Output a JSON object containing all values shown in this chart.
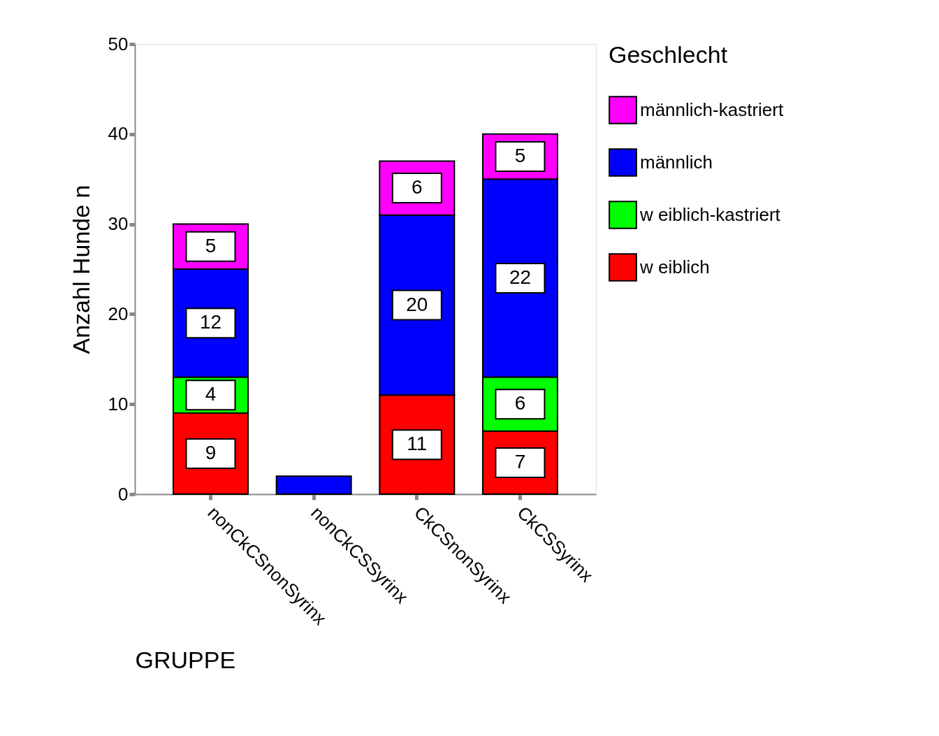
{
  "chart_data": {
    "type": "bar",
    "stacked": true,
    "xlabel": "GRUPPE",
    "ylabel": "Anzahl Hunde n",
    "legend_title": "Geschlecht",
    "legend": "right",
    "categories": [
      "nonCkCSnonSyrinx",
      "nonCkCSSyrinx",
      "CkCSnonSyrinx",
      "CkCSSyrinx"
    ],
    "ylim": [
      0,
      50
    ],
    "yticks": [
      0,
      10,
      20,
      30,
      40,
      50
    ],
    "grid": false,
    "series": [
      {
        "name": "w eiblich",
        "color": "#ff0000",
        "values": [
          9,
          null,
          11,
          7
        ],
        "value_labels": [
          "9",
          null,
          "11",
          "7"
        ]
      },
      {
        "name": "w eiblich-kastriert",
        "color": "#00ff00",
        "values": [
          4,
          null,
          null,
          6
        ],
        "value_labels": [
          "4",
          null,
          null,
          "6"
        ]
      },
      {
        "name": "männlich",
        "color": "#0000ff",
        "values": [
          12,
          2,
          20,
          22
        ],
        "value_labels": [
          "12",
          null,
          "20",
          "22"
        ]
      },
      {
        "name": "männlich-kastriert",
        "color": "#ff00ff",
        "values": [
          5,
          null,
          6,
          5
        ],
        "value_labels": [
          "5",
          null,
          "6",
          "5"
        ]
      }
    ]
  }
}
